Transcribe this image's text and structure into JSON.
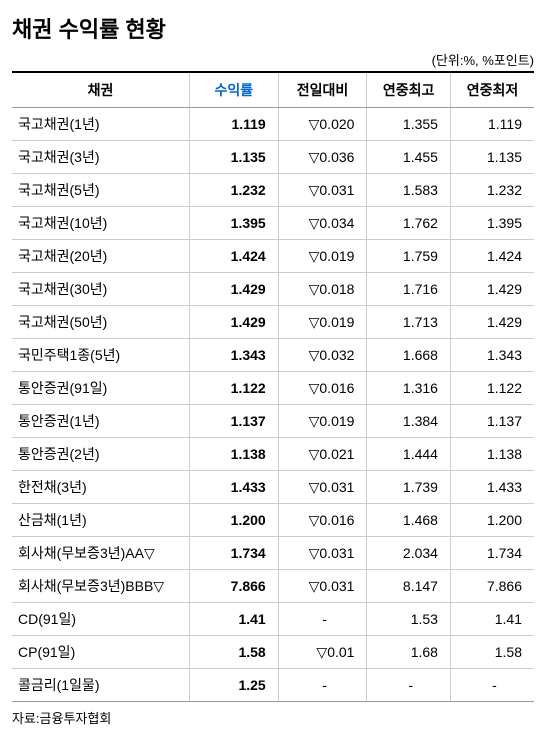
{
  "title": "채권 수익률 현황",
  "unit": "(단위:%, %포인트)",
  "source": "자료:금융투자협회",
  "columns": {
    "bond": "채권",
    "yield": "수익률",
    "change": "전일대비",
    "high": "연중최고",
    "low": "연중최저"
  },
  "colors": {
    "title": "#000000",
    "header_accent": "#0066cc",
    "border_top": "#000000",
    "border_cell": "#cccccc",
    "border_header": "#999999",
    "background": "#ffffff",
    "text": "#000000"
  },
  "rows": [
    {
      "name": "국고채권(1년)",
      "yield": "1.119",
      "change": "▽0.020",
      "high": "1.355",
      "low": "1.119"
    },
    {
      "name": "국고채권(3년)",
      "yield": "1.135",
      "change": "▽0.036",
      "high": "1.455",
      "low": "1.135"
    },
    {
      "name": "국고채권(5년)",
      "yield": "1.232",
      "change": "▽0.031",
      "high": "1.583",
      "low": "1.232"
    },
    {
      "name": "국고채권(10년)",
      "yield": "1.395",
      "change": "▽0.034",
      "high": "1.762",
      "low": "1.395"
    },
    {
      "name": "국고채권(20년)",
      "yield": "1.424",
      "change": "▽0.019",
      "high": "1.759",
      "low": "1.424"
    },
    {
      "name": "국고채권(30년)",
      "yield": "1.429",
      "change": "▽0.018",
      "high": "1.716",
      "low": "1.429"
    },
    {
      "name": "국고채권(50년)",
      "yield": "1.429",
      "change": "▽0.019",
      "high": "1.713",
      "low": "1.429"
    },
    {
      "name": "국민주택1종(5년)",
      "yield": "1.343",
      "change": "▽0.032",
      "high": "1.668",
      "low": "1.343"
    },
    {
      "name": "통안증권(91일)",
      "yield": "1.122",
      "change": "▽0.016",
      "high": "1.316",
      "low": "1.122"
    },
    {
      "name": "통안증권(1년)",
      "yield": "1.137",
      "change": "▽0.019",
      "high": "1.384",
      "low": "1.137"
    },
    {
      "name": "통안증권(2년)",
      "yield": "1.138",
      "change": "▽0.021",
      "high": "1.444",
      "low": "1.138"
    },
    {
      "name": "한전채(3년)",
      "yield": "1.433",
      "change": "▽0.031",
      "high": "1.739",
      "low": "1.433"
    },
    {
      "name": "산금채(1년)",
      "yield": "1.200",
      "change": "▽0.016",
      "high": "1.468",
      "low": "1.200"
    },
    {
      "name": "회사채(무보증3년)AA▽",
      "yield": "1.734",
      "change": "▽0.031",
      "high": "2.034",
      "low": "1.734"
    },
    {
      "name": "회사채(무보증3년)BBB▽",
      "yield": "7.866",
      "change": "▽0.031",
      "high": "8.147",
      "low": "7.866"
    },
    {
      "name": "CD(91일)",
      "yield": "1.41",
      "change": "-",
      "high": "1.53",
      "low": "1.41"
    },
    {
      "name": "CP(91일)",
      "yield": "1.58",
      "change": "▽0.01",
      "high": "1.68",
      "low": "1.58"
    },
    {
      "name": "콜금리(1일물)",
      "yield": "1.25",
      "change": "-",
      "high": "-",
      "low": "-"
    }
  ]
}
